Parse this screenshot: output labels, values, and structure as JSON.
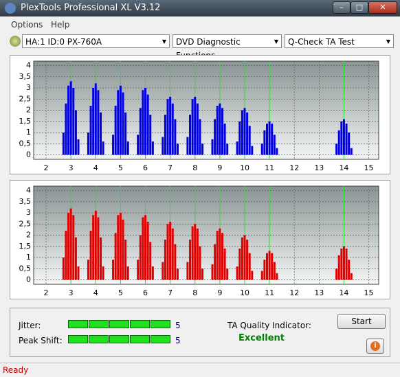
{
  "window": {
    "title": "PlexTools Professional XL V3.12",
    "status": "Ready"
  },
  "menu": [
    "Options",
    "Help"
  ],
  "dropdowns": [
    "HA:1 ID:0  PX-760A",
    "DVD Diagnostic Functions",
    "Q-Check TA Test"
  ],
  "chart_data": [
    {
      "type": "bar",
      "color": "#0000e0",
      "x": [
        2.7,
        2.8,
        2.9,
        3.0,
        3.1,
        3.2,
        3.3,
        3.7,
        3.8,
        3.9,
        4.0,
        4.1,
        4.2,
        4.3,
        4.7,
        4.8,
        4.9,
        5.0,
        5.1,
        5.2,
        5.3,
        5.7,
        5.8,
        5.9,
        6.0,
        6.1,
        6.2,
        6.3,
        6.7,
        6.8,
        6.9,
        7.0,
        7.1,
        7.2,
        7.3,
        7.7,
        7.8,
        7.9,
        8.0,
        8.1,
        8.2,
        8.3,
        8.7,
        8.8,
        8.9,
        9.0,
        9.1,
        9.2,
        9.3,
        9.7,
        9.8,
        9.9,
        10.0,
        10.1,
        10.2,
        10.3,
        10.7,
        10.8,
        10.9,
        11.0,
        11.1,
        11.2,
        11.3,
        13.7,
        13.8,
        13.9,
        14.0,
        14.1,
        14.2,
        14.3
      ],
      "values": [
        1.0,
        2.3,
        3.1,
        3.3,
        3.0,
        2.0,
        0.7,
        1.0,
        2.2,
        3.0,
        3.2,
        2.9,
        1.9,
        0.6,
        0.9,
        2.2,
        2.9,
        3.1,
        2.8,
        1.9,
        0.6,
        0.9,
        2.1,
        2.9,
        3.0,
        2.7,
        1.8,
        0.6,
        0.8,
        1.8,
        2.5,
        2.6,
        2.3,
        1.6,
        0.5,
        0.8,
        1.8,
        2.5,
        2.6,
        2.3,
        1.6,
        0.5,
        0.7,
        1.6,
        2.2,
        2.3,
        2.1,
        1.4,
        0.5,
        0.6,
        1.5,
        2.0,
        2.1,
        1.9,
        1.3,
        0.4,
        0.5,
        1.1,
        1.4,
        1.5,
        1.4,
        0.9,
        0.3,
        0.5,
        1.1,
        1.5,
        1.6,
        1.4,
        1.0,
        0.3
      ],
      "markers": [
        3,
        4,
        5,
        6,
        7,
        8,
        9,
        10,
        11,
        14
      ],
      "xlim": [
        1.5,
        15.4
      ],
      "xticks": [
        2,
        3,
        4,
        5,
        6,
        7,
        8,
        9,
        10,
        11,
        12,
        13,
        14,
        15
      ],
      "ylim": [
        -0.2,
        4.2
      ],
      "yticks": [
        0,
        {
          "value": 0.5,
          "label": "0,5"
        },
        1,
        {
          "value": 1.5,
          "label": "1,5"
        },
        2,
        {
          "value": 2.5,
          "label": "2,5"
        },
        3,
        {
          "value": 3.5,
          "label": "3,5"
        },
        4
      ],
      "grid": true
    },
    {
      "type": "bar",
      "color": "#e00000",
      "x": [
        2.7,
        2.8,
        2.9,
        3.0,
        3.1,
        3.2,
        3.3,
        3.7,
        3.8,
        3.9,
        4.0,
        4.1,
        4.2,
        4.3,
        4.7,
        4.8,
        4.9,
        5.0,
        5.1,
        5.2,
        5.3,
        5.7,
        5.8,
        5.9,
        6.0,
        6.1,
        6.2,
        6.3,
        6.7,
        6.8,
        6.9,
        7.0,
        7.1,
        7.2,
        7.3,
        7.7,
        7.8,
        7.9,
        8.0,
        8.1,
        8.2,
        8.3,
        8.7,
        8.8,
        8.9,
        9.0,
        9.1,
        9.2,
        9.3,
        9.7,
        9.8,
        9.9,
        10.0,
        10.1,
        10.2,
        10.3,
        10.7,
        10.8,
        10.9,
        11.0,
        11.1,
        11.2,
        11.3,
        13.7,
        13.8,
        13.9,
        14.0,
        14.1,
        14.2,
        14.3
      ],
      "values": [
        1.0,
        2.2,
        3.0,
        3.2,
        2.9,
        1.9,
        0.6,
        0.9,
        2.2,
        2.9,
        3.1,
        2.8,
        1.9,
        0.6,
        0.9,
        2.1,
        2.9,
        3.0,
        2.7,
        1.8,
        0.6,
        0.9,
        2.0,
        2.8,
        2.9,
        2.6,
        1.7,
        0.6,
        0.8,
        1.8,
        2.5,
        2.6,
        2.3,
        1.6,
        0.5,
        0.8,
        1.8,
        2.4,
        2.5,
        2.3,
        1.5,
        0.5,
        0.7,
        1.6,
        2.2,
        2.3,
        2.1,
        1.4,
        0.5,
        0.6,
        1.4,
        1.9,
        2.0,
        1.8,
        1.2,
        0.4,
        0.4,
        0.9,
        1.2,
        1.3,
        1.2,
        0.8,
        0.3,
        0.5,
        1.1,
        1.4,
        1.5,
        1.4,
        0.9,
        0.3
      ],
      "markers": [
        3,
        4,
        5,
        6,
        7,
        8,
        9,
        10,
        11,
        14
      ],
      "xlim": [
        1.5,
        15.4
      ],
      "xticks": [
        2,
        3,
        4,
        5,
        6,
        7,
        8,
        9,
        10,
        11,
        12,
        13,
        14,
        15
      ],
      "ylim": [
        -0.2,
        4.2
      ],
      "yticks": [
        0,
        {
          "value": 0.5,
          "label": "0,5"
        },
        1,
        {
          "value": 1.5,
          "label": "1,5"
        },
        2,
        {
          "value": 2.5,
          "label": "2,5"
        },
        3,
        {
          "value": 3.5,
          "label": "3,5"
        },
        4
      ],
      "grid": true
    }
  ],
  "results": {
    "jitter": {
      "label": "Jitter:",
      "value": 5
    },
    "peak_shift": {
      "label": "Peak Shift:",
      "value": 5
    },
    "quality_label": "TA Quality Indicator:",
    "quality": "Excellent",
    "button": "Start"
  }
}
